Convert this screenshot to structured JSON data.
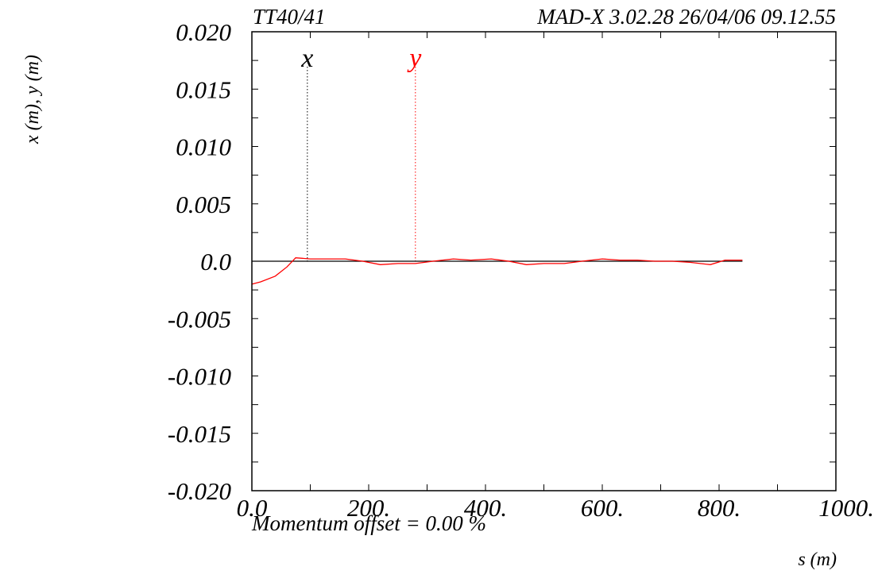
{
  "chart_data": {
    "type": "line",
    "header": {
      "left": "TT40/41",
      "right": "MAD-X 3.02.28  26/04/06 09.12.55"
    },
    "xlabel": "s (m)",
    "ylabel": "x (m), y (m)",
    "footer": "Momentum offset =    0.00 %",
    "xlim": [
      0,
      1000
    ],
    "ylim": [
      -0.02,
      0.02
    ],
    "x_ticks": [
      0,
      200,
      400,
      600,
      800,
      1000
    ],
    "x_tick_labels": [
      "0.0",
      "200.",
      "400.",
      "600.",
      "800.",
      "1000."
    ],
    "y_ticks": [
      0.02,
      0.015,
      0.01,
      0.005,
      0,
      -0.005,
      -0.01,
      -0.015,
      -0.02
    ],
    "y_tick_labels": [
      "0.020",
      "0.015",
      "0.010",
      "0.005",
      "0.0",
      "-0.005",
      "-0.010",
      "-0.015",
      "-0.020"
    ],
    "markers": [
      {
        "label": "x",
        "s": 95,
        "color": "#000000"
      },
      {
        "label": "y",
        "s": 280,
        "color": "#ff0000"
      }
    ],
    "series": [
      {
        "name": "x",
        "color": "#000000",
        "x": [
          0,
          840
        ],
        "y": [
          0,
          0
        ]
      },
      {
        "name": "y",
        "color": "#ff0000",
        "x": [
          0,
          15,
          40,
          60,
          75,
          100,
          130,
          160,
          190,
          220,
          250,
          280,
          310,
          345,
          375,
          410,
          440,
          470,
          500,
          535,
          565,
          600,
          630,
          660,
          690,
          720,
          750,
          785,
          810,
          840
        ],
        "y": [
          -0.002,
          -0.0018,
          -0.0013,
          -0.0005,
          0.0003,
          0.0002,
          0.0002,
          0.0002,
          0.0,
          -0.0003,
          -0.0002,
          -0.0002,
          0.0,
          0.0002,
          0.0001,
          0.0002,
          0.0,
          -0.0003,
          -0.0002,
          -0.0002,
          0.0,
          0.0002,
          0.0001,
          0.0001,
          0.0,
          0.0,
          -0.0001,
          -0.0003,
          0.0001,
          0.0001
        ]
      }
    ]
  }
}
